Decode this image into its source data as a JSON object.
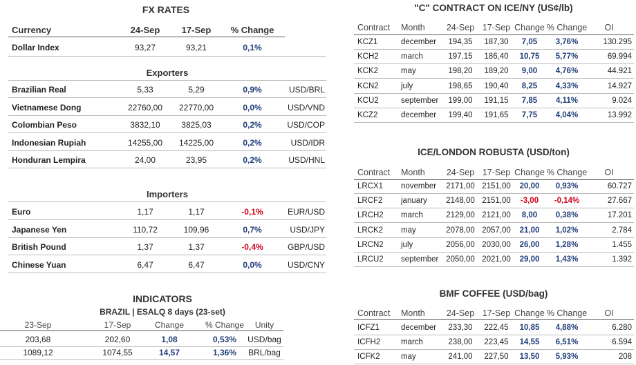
{
  "fx": {
    "title": "FX RATES",
    "headers": [
      "Currency",
      "24-Sep",
      "17-Sep",
      "% Change"
    ],
    "exporters_label": "Exporters",
    "importers_label": "Importers",
    "exporters": [
      {
        "name": "Brazilian Real",
        "a": "5,33",
        "b": "5,29",
        "chg": "0,9%",
        "pair": "USD/BRL"
      },
      {
        "name": "Vietnamese Dong",
        "a": "22760,00",
        "b": "22770,00",
        "chg": "0,0%",
        "pair": "USD/VND"
      },
      {
        "name": "Colombian Peso",
        "a": "3832,10",
        "b": "3825,03",
        "chg": "0,2%",
        "pair": "USD/COP"
      },
      {
        "name": "Indonesian Rupiah",
        "a": "14255,00",
        "b": "14225,00",
        "chg": "0,2%",
        "pair": "USD/IDR"
      },
      {
        "name": "Honduran Lempira",
        "a": "24,00",
        "b": "23,95",
        "chg": "0,2%",
        "pair": "USD/HNL"
      }
    ],
    "dollar_index": {
      "name": "Dollar Index",
      "a": "93,27",
      "b": "93,21",
      "chg": "0,1%"
    },
    "importers": [
      {
        "name": "Euro",
        "a": "1,17",
        "b": "1,17",
        "chg": "-0,1%",
        "pair": "EUR/USD"
      },
      {
        "name": "Japanese Yen",
        "a": "110,72",
        "b": "109,96",
        "chg": "0,7%",
        "pair": "USD/JPY"
      },
      {
        "name": "British Pound",
        "a": "1,37",
        "b": "1,37",
        "chg": "-0,4%",
        "pair": "GBP/USD"
      },
      {
        "name": "Chinese Yuan",
        "a": "6,47",
        "b": "6,47",
        "chg": "0,0%",
        "pair": "USD/CNY"
      }
    ]
  },
  "indicators": {
    "title": "INDICATORS",
    "subtitle": "BRAZIL | ESALQ 8 days (23-set)",
    "headers": [
      "23-Sep",
      "17-Sep",
      "Change",
      "% Change",
      "Unity"
    ],
    "rows": [
      [
        "203,68",
        "202,60",
        "1,08",
        "0,53%",
        "USD/bag"
      ],
      [
        "1089,12",
        "1074,55",
        "14,57",
        "1,36%",
        "BRL/bag"
      ]
    ]
  },
  "contract_headers": [
    "Contract",
    "Month",
    "24-Sep",
    "17-Sep",
    "Change",
    "% Change",
    "OI"
  ],
  "ice_ny": {
    "title": "\"C\" CONTRACT ON ICE/NY (US¢/lb)",
    "rows": [
      [
        "KCZ1",
        "december",
        "194,35",
        "187,30",
        "7,05",
        "3,76%",
        "130.295"
      ],
      [
        "KCH2",
        "march",
        "197,15",
        "186,40",
        "10,75",
        "5,77%",
        "69.994"
      ],
      [
        "KCK2",
        "may",
        "198,20",
        "189,20",
        "9,00",
        "4,76%",
        "44.921"
      ],
      [
        "KCN2",
        "july",
        "198,65",
        "190,40",
        "8,25",
        "4,33%",
        "14.927"
      ],
      [
        "KCU2",
        "september",
        "199,00",
        "191,15",
        "7,85",
        "4,11%",
        "9.024"
      ],
      [
        "KCZ2",
        "december",
        "199,40",
        "191,65",
        "7,75",
        "4,04%",
        "13.992"
      ]
    ]
  },
  "robusta": {
    "title": "ICE/LONDON ROBUSTA (USD/ton)",
    "rows": [
      [
        "LRCX1",
        "november",
        "2171,00",
        "2151,00",
        "20,00",
        "0,93%",
        "60.727"
      ],
      [
        "LRCF2",
        "january",
        "2148,00",
        "2151,00",
        "-3,00",
        "-0,14%",
        "27.667"
      ],
      [
        "LRCH2",
        "march",
        "2129,00",
        "2121,00",
        "8,00",
        "0,38%",
        "17.201"
      ],
      [
        "LRCK2",
        "may",
        "2078,00",
        "2057,00",
        "21,00",
        "1,02%",
        "2.784"
      ],
      [
        "LRCN2",
        "july",
        "2056,00",
        "2030,00",
        "26,00",
        "1,28%",
        "1.455"
      ],
      [
        "LRCU2",
        "september",
        "2050,00",
        "2021,00",
        "29,00",
        "1,43%",
        "1.392"
      ]
    ]
  },
  "bmf": {
    "title": "BMF COFFEE (USD/bag)",
    "rows": [
      [
        "ICFZ1",
        "december",
        "233,30",
        "222,45",
        "10,85",
        "4,88%",
        "6.280"
      ],
      [
        "ICFH2",
        "march",
        "238,00",
        "223,45",
        "14,55",
        "6,51%",
        "6.594"
      ],
      [
        "ICFK2",
        "may",
        "241,00",
        "227,50",
        "13,50",
        "5,93%",
        "208"
      ]
    ]
  },
  "colors": {
    "positive": "#1f3d7a",
    "negative": "#d0021b"
  }
}
